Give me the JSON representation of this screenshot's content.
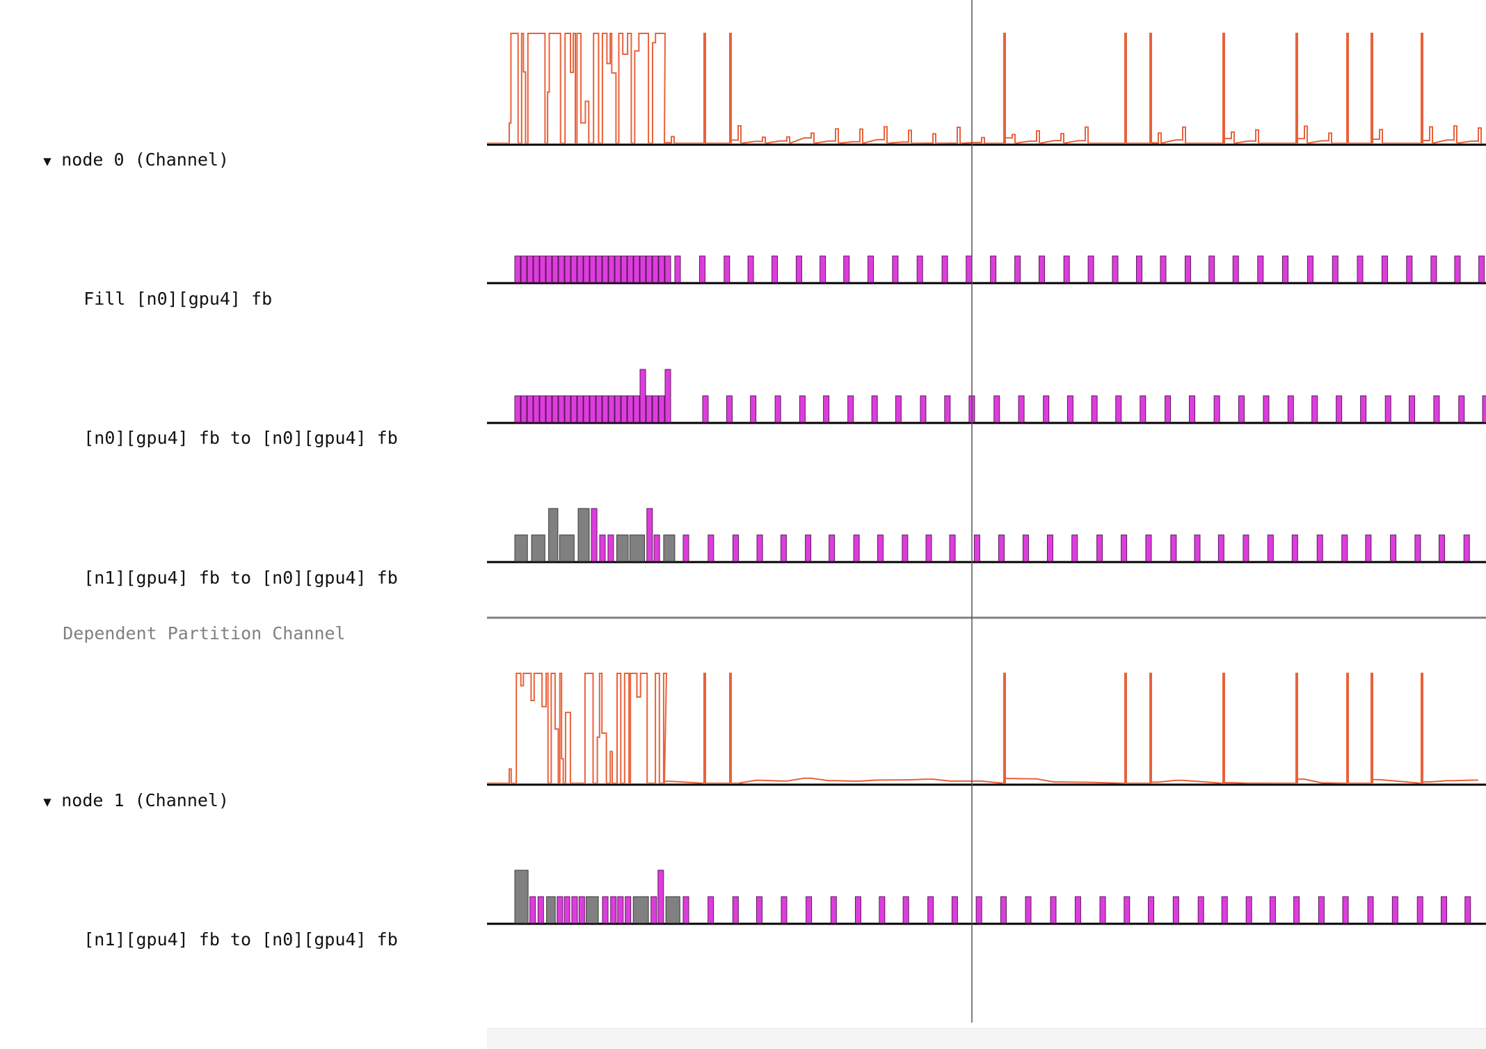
{
  "colors": {
    "utilization_line": "#e8623a",
    "copy_fill": "#dd3ddd",
    "copy_stroke": "#5a1a5a",
    "dependent_fill": "#808080",
    "dependent_stroke": "#3a3a3a",
    "baseline": "#000000",
    "section_line": "#808080",
    "cursor_line": "#555555"
  },
  "rows": [
    {
      "kind": "group",
      "label": "node 0 (Channel)",
      "caret": "▼",
      "caret_icon": "triangle-down-icon"
    },
    {
      "kind": "child",
      "label": "Fill [n0][gpu4] fb"
    },
    {
      "kind": "child",
      "label": "[n0][gpu4] fb to [n0][gpu4] fb"
    },
    {
      "kind": "child",
      "label": "[n1][gpu4] fb to [n0][gpu4] fb"
    },
    {
      "kind": "section",
      "label": "Dependent Partition Channel"
    },
    {
      "kind": "group",
      "label": "node 1 (Channel)",
      "caret": "▼",
      "caret_icon": "triangle-down-icon"
    },
    {
      "kind": "child",
      "label": "[n1][gpu4] fb to [n0][gpu4] fb"
    }
  ]
}
